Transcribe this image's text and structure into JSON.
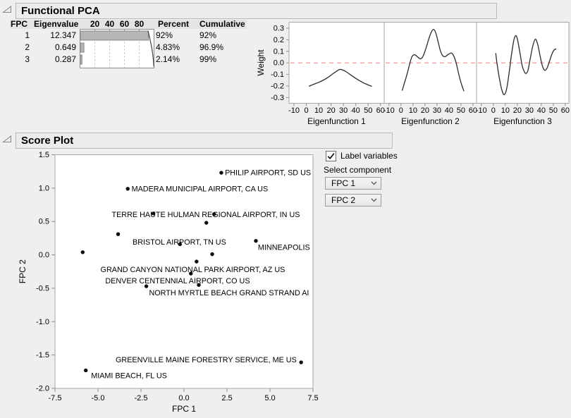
{
  "window": {
    "bg": "#f0efed"
  },
  "functional_pca": {
    "title": "Functional PCA",
    "table": {
      "col_fpc": "FPC",
      "col_eigenvalue": "Eigenvalue",
      "col_percent": "Percent",
      "col_cumulative": "Cumulative",
      "bar_axis_ticks": [
        "20",
        "40",
        "60",
        "80"
      ],
      "bar_color": "#b5b5b5",
      "bar_border": "#878787",
      "curve_color": "#454545",
      "rows": [
        {
          "fpc": "1",
          "eigenvalue": "12.347",
          "percent": "92%",
          "cumulative": "92%",
          "percent_value": 92,
          "cumulative_value": 92
        },
        {
          "fpc": "2",
          "eigenvalue": "0.649",
          "percent": "4.83%",
          "cumulative": "96.9%",
          "percent_value": 4.83,
          "cumulative_value": 96.9
        },
        {
          "fpc": "3",
          "eigenvalue": "0.287",
          "percent": "2.14%",
          "cumulative": "99%",
          "percent_value": 2.14,
          "cumulative_value": 99
        }
      ]
    }
  },
  "score_plot": {
    "title": "Score Plot"
  },
  "controls": {
    "label_variables": "Label variables",
    "label_variables_checked": true,
    "select_component": "Select component",
    "component_1": "FPC 1",
    "component_2": "FPC 2"
  },
  "chart_data": [
    {
      "type": "line",
      "title": "Eigenfunction weight functions",
      "ylabel": "Weight",
      "ylim": [
        -0.35,
        0.35
      ],
      "yticks": [
        0.3,
        0.2,
        0.1,
        0.0,
        -0.1,
        -0.2,
        -0.3
      ],
      "xlim": [
        -14,
        63
      ],
      "xticks": [
        -10,
        0,
        10,
        20,
        30,
        40,
        50,
        60
      ],
      "line_color": "#2b2b2b",
      "reference_line": {
        "y": 0,
        "color": "#f28b8b",
        "style": "dashed"
      },
      "panels": [
        {
          "xlabel": "Eigenfunction 1",
          "points": [
            [
              2,
              -0.203
            ],
            [
              6,
              -0.185
            ],
            [
              10,
              -0.168
            ],
            [
              14,
              -0.148
            ],
            [
              18,
              -0.122
            ],
            [
              22,
              -0.09
            ],
            [
              25,
              -0.068
            ],
            [
              27,
              -0.057
            ],
            [
              29,
              -0.06
            ],
            [
              32,
              -0.075
            ],
            [
              36,
              -0.105
            ],
            [
              40,
              -0.134
            ],
            [
              44,
              -0.16
            ],
            [
              48,
              -0.182
            ],
            [
              53,
              -0.203
            ]
          ]
        },
        {
          "xlabel": "Eigenfunction 2",
          "points": [
            [
              1,
              -0.24
            ],
            [
              3,
              -0.17
            ],
            [
              5,
              -0.1
            ],
            [
              7,
              -0.02
            ],
            [
              9,
              0.05
            ],
            [
              11,
              0.071
            ],
            [
              13,
              0.06
            ],
            [
              16,
              0.035
            ],
            [
              18,
              0.05
            ],
            [
              20,
              0.1
            ],
            [
              23,
              0.2
            ],
            [
              25,
              0.26
            ],
            [
              27,
              0.29
            ],
            [
              29,
              0.26
            ],
            [
              31,
              0.18
            ],
            [
              33,
              0.1
            ],
            [
              35,
              0.06
            ],
            [
              37,
              0.055
            ],
            [
              39,
              0.07
            ],
            [
              42,
              0.085
            ],
            [
              44,
              0.06
            ],
            [
              46,
              0.0
            ],
            [
              48,
              -0.09
            ],
            [
              50,
              -0.17
            ],
            [
              52.5,
              -0.245
            ]
          ]
        },
        {
          "xlabel": "Eigenfunction 3",
          "points": [
            [
              2,
              0.085
            ],
            [
              3,
              0.0
            ],
            [
              5,
              -0.13
            ],
            [
              7,
              -0.23
            ],
            [
              9,
              -0.275
            ],
            [
              11,
              -0.23
            ],
            [
              13,
              -0.1
            ],
            [
              15,
              0.06
            ],
            [
              17,
              0.19
            ],
            [
              18.5,
              0.235
            ],
            [
              20,
              0.21
            ],
            [
              22,
              0.1
            ],
            [
              24,
              -0.02
            ],
            [
              26,
              -0.08
            ],
            [
              27.5,
              -0.09
            ],
            [
              29,
              -0.06
            ],
            [
              31,
              0.05
            ],
            [
              33,
              0.15
            ],
            [
              35,
              0.205
            ],
            [
              37,
              0.16
            ],
            [
              39,
              0.06
            ],
            [
              41,
              -0.03
            ],
            [
              43,
              -0.065
            ],
            [
              45,
              -0.04
            ],
            [
              47,
              0.02
            ],
            [
              49,
              0.08
            ],
            [
              51,
              0.115
            ],
            [
              52.5,
              0.12
            ]
          ]
        }
      ]
    },
    {
      "type": "scatter",
      "xlabel": "FPC 1",
      "ylabel": "FPC 2",
      "xlim": [
        -7.5,
        7.5
      ],
      "ylim": [
        -2.0,
        1.5
      ],
      "xticks": [
        -7.5,
        -5.0,
        -2.5,
        0.0,
        2.5,
        5.0,
        7.5
      ],
      "yticks": [
        1.5,
        1.0,
        0.5,
        0.0,
        -0.5,
        -1.0,
        -1.5,
        -2.0
      ],
      "marker_color": "#0d0d0d",
      "points": [
        [
          2.17,
          1.23
        ],
        [
          -3.27,
          0.99
        ],
        [
          -1.78,
          0.62
        ],
        [
          1.75,
          0.61
        ],
        [
          1.3,
          0.48
        ],
        [
          -3.83,
          0.31
        ],
        [
          -0.23,
          0.16
        ],
        [
          -5.89,
          0.04
        ],
        [
          4.18,
          0.21
        ],
        [
          1.64,
          0.01
        ],
        [
          0.73,
          -0.1
        ],
        [
          0.4,
          -0.28
        ],
        [
          -2.19,
          -0.47
        ],
        [
          0.86,
          -0.45
        ],
        [
          6.81,
          -1.61
        ],
        [
          -5.71,
          -1.73
        ]
      ],
      "labels": [
        {
          "text": "PHILIP AIRPORT, SD US",
          "x": 2.38,
          "y": 1.23,
          "anchor": "start"
        },
        {
          "text": "MADERA MUNICIPAL AIRPORT, CA US",
          "x": -3.05,
          "y": 0.99,
          "anchor": "start"
        },
        {
          "text": "TERRE HAUTE HULMAN REGIONAL AIRPORT, IN US",
          "x": 1.27,
          "y": 0.6,
          "anchor": "middle"
        },
        {
          "text": "BRISTOL AIRPORT, TN US",
          "x": -0.27,
          "y": 0.19,
          "anchor": "middle"
        },
        {
          "text": "MINNEAPOLIS",
          "x": 4.3,
          "y": 0.11,
          "anchor": "start"
        },
        {
          "text": "GRAND CANYON NATIONAL PARK AIRPORT, AZ US",
          "x": 0.51,
          "y": -0.22,
          "anchor": "middle"
        },
        {
          "text": "DENVER CENTENNIAL AIRPORT, CO US",
          "x": -0.37,
          "y": -0.39,
          "anchor": "middle"
        },
        {
          "text": "NORTH MYRTLE BEACH GRAND STRAND AI",
          "x": -2.03,
          "y": -0.57,
          "anchor": "start"
        },
        {
          "text": "GREENVILLE MAINE FORESTRY SERVICE, ME US",
          "x": 6.55,
          "y": -1.57,
          "anchor": "end"
        },
        {
          "text": "MIAMI BEACH, FL US",
          "x": -5.4,
          "y": -1.81,
          "anchor": "start"
        }
      ]
    }
  ]
}
